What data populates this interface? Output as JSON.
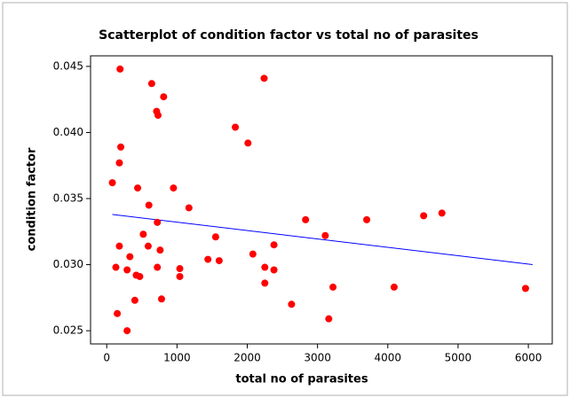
{
  "chart_data": {
    "type": "scatter",
    "title": "Scatterplot of condition factor vs total no of parasites",
    "x_label": "total no of parasites",
    "y_label": "condition factor",
    "color": "#ff0000",
    "x": [
      80,
      180,
      200,
      190,
      180,
      130,
      150,
      290,
      330,
      290,
      420,
      470,
      400,
      440,
      520,
      590,
      600,
      640,
      710,
      730,
      810,
      720,
      760,
      720,
      780,
      950,
      1040,
      1040,
      1170,
      1440,
      1550,
      1600,
      1830,
      2010,
      2080,
      2250,
      2250,
      2240,
      2380,
      2380,
      2630,
      2830,
      3110,
      3160,
      3220,
      3700,
      4090,
      4510,
      4770,
      5960
    ],
    "values": [
      0.0362,
      0.0377,
      0.0389,
      0.0448,
      0.0314,
      0.0298,
      0.0263,
      0.025,
      0.0306,
      0.0296,
      0.0292,
      0.0291,
      0.0273,
      0.0358,
      0.0323,
      0.0314,
      0.0345,
      0.0437,
      0.0416,
      0.0413,
      0.0427,
      0.0332,
      0.0311,
      0.0298,
      0.0274,
      0.0358,
      0.0297,
      0.0291,
      0.0343,
      0.0304,
      0.0321,
      0.0303,
      0.0404,
      0.0392,
      0.0308,
      0.0298,
      0.0286,
      0.0441,
      0.0315,
      0.0296,
      0.027,
      0.0334,
      0.0322,
      0.0259,
      0.0283,
      0.0334,
      0.0283,
      0.0337,
      0.0339,
      0.0282
    ],
    "fit_line": {
      "color": "#0000ff",
      "x": [
        80,
        6060
      ],
      "values": [
        0.0338,
        0.03
      ]
    },
    "xlim": [
      -230,
      6340
    ],
    "ylim": [
      0.024,
      0.0458
    ],
    "xticks": [
      0,
      1000,
      2000,
      3000,
      4000,
      5000,
      6000
    ],
    "yticks": [
      0.025,
      {
        "value": 0.03,
        "label": "0.030"
      },
      0.035,
      {
        "value": 0.04,
        "label": "0.040"
      },
      0.045
    ]
  }
}
